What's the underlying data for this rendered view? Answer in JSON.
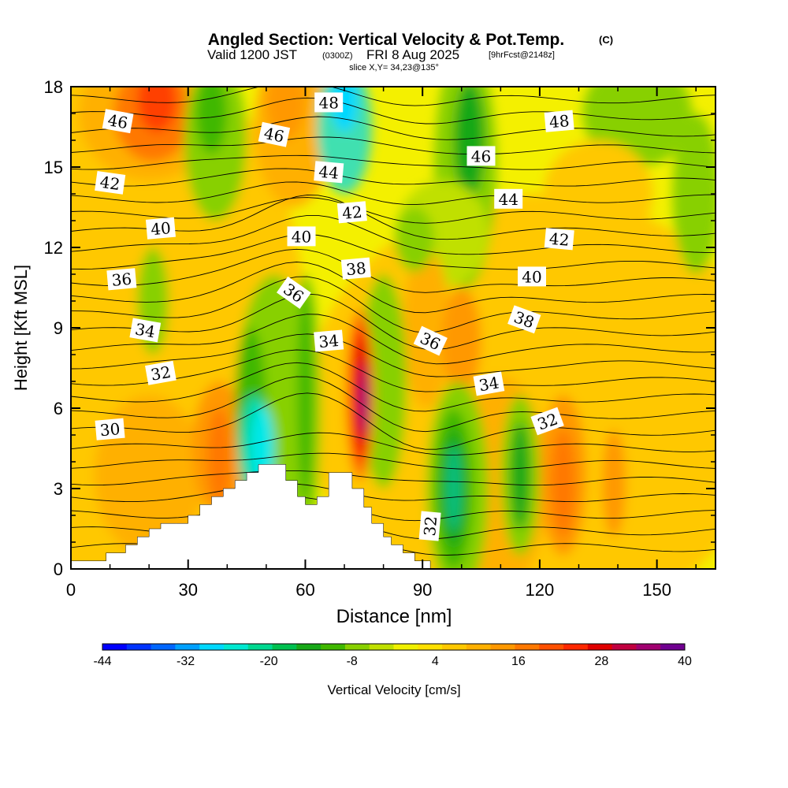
{
  "chart_data": {
    "type": "heatmap",
    "title": {
      "main": "Angled Section: Vertical Velocity & Pot.Temp.",
      "unit": "(C)",
      "valid_prefix": "Valid 1200 JST",
      "valid_utc": "(0300Z)",
      "valid_date": "FRI 8 Aug 2025",
      "forecast": "[9hrFcst@2148z]",
      "slice": "slice X,Y= 34,23@135°"
    },
    "xlabel": "Distance [nm]",
    "ylabel": "Height [Kft MSL]",
    "xlim": [
      0,
      165
    ],
    "ylim": [
      0,
      18
    ],
    "xticks": [
      "0",
      "30",
      "60",
      "90",
      "120",
      "150"
    ],
    "yticks": [
      "0",
      "3",
      "6",
      "9",
      "12",
      "15",
      "18"
    ],
    "colorbar": {
      "label": "Vertical Velocity [cm/s]",
      "ticks": [
        "-44",
        "-32",
        "-20",
        "-8",
        "4",
        "16",
        "28",
        "40"
      ],
      "range": [
        -44,
        40
      ],
      "colors": [
        "#0000ff",
        "#0033ff",
        "#0066ff",
        "#00a0ff",
        "#00d8ff",
        "#00e8d0",
        "#00d890",
        "#00c050",
        "#18a818",
        "#40b800",
        "#88d000",
        "#c0e000",
        "#f0f000",
        "#ffe000",
        "#ffc800",
        "#ffb000",
        "#ff9800",
        "#ff7800",
        "#ff5000",
        "#ff2800",
        "#e00000",
        "#c00040",
        "#a00070",
        "#700090"
      ]
    },
    "contour_labels": [
      {
        "text": "46",
        "x": 12,
        "y": 16.7,
        "rot": 10
      },
      {
        "text": "48",
        "x": 66,
        "y": 17.4,
        "rot": 0
      },
      {
        "text": "48",
        "x": 125,
        "y": 16.7,
        "rot": -5
      },
      {
        "text": "46",
        "x": 52,
        "y": 16.2,
        "rot": 12
      },
      {
        "text": "46",
        "x": 105,
        "y": 15.4,
        "rot": 0
      },
      {
        "text": "44",
        "x": 66,
        "y": 14.8,
        "rot": 5
      },
      {
        "text": "44",
        "x": 112,
        "y": 13.8,
        "rot": 0
      },
      {
        "text": "42",
        "x": 10,
        "y": 14.4,
        "rot": 8
      },
      {
        "text": "42",
        "x": 72,
        "y": 13.3,
        "rot": -5
      },
      {
        "text": "42",
        "x": 125,
        "y": 12.3,
        "rot": 5
      },
      {
        "text": "40",
        "x": 23,
        "y": 12.7,
        "rot": -5
      },
      {
        "text": "40",
        "x": 59,
        "y": 12.4,
        "rot": 0
      },
      {
        "text": "40",
        "x": 118,
        "y": 10.9,
        "rot": 0
      },
      {
        "text": "38",
        "x": 73,
        "y": 11.2,
        "rot": -5
      },
      {
        "text": "38",
        "x": 116,
        "y": 9.3,
        "rot": 20
      },
      {
        "text": "36",
        "x": 13,
        "y": 10.8,
        "rot": -5
      },
      {
        "text": "36",
        "x": 57,
        "y": 10.3,
        "rot": 35
      },
      {
        "text": "36",
        "x": 92,
        "y": 8.5,
        "rot": 25
      },
      {
        "text": "34",
        "x": 19,
        "y": 8.9,
        "rot": 10
      },
      {
        "text": "34",
        "x": 66,
        "y": 8.5,
        "rot": -5
      },
      {
        "text": "34",
        "x": 107,
        "y": 6.9,
        "rot": -10
      },
      {
        "text": "32",
        "x": 23,
        "y": 7.3,
        "rot": -10
      },
      {
        "text": "32",
        "x": 122,
        "y": 5.5,
        "rot": -20
      },
      {
        "text": "32",
        "x": 92,
        "y": 1.6,
        "rot": -85
      },
      {
        "text": "30",
        "x": 10,
        "y": 5.2,
        "rot": -5
      }
    ],
    "notes": "Vertical velocity shading with potential temperature contours; terrain masked in white."
  }
}
